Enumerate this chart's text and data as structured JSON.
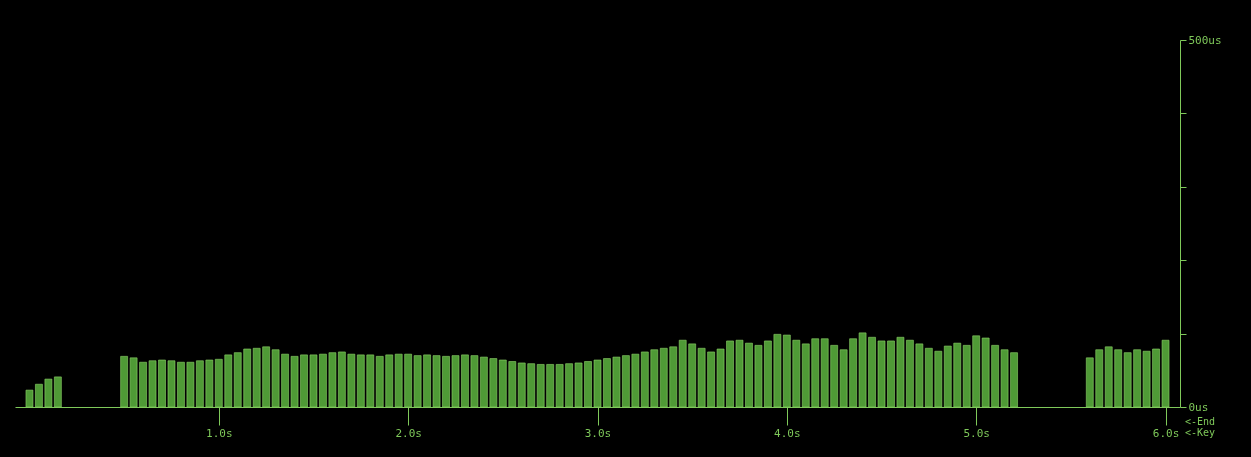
{
  "chart_data": {
    "type": "bar",
    "x": [
      0.0,
      0.05,
      0.1,
      0.15,
      0.2,
      0.25,
      0.3,
      0.35,
      0.4,
      0.45,
      0.5,
      0.55,
      0.6,
      0.65,
      0.7,
      0.75,
      0.8,
      0.85,
      0.9,
      0.95,
      1.0,
      1.05,
      1.1,
      1.15,
      1.2,
      1.25,
      1.3,
      1.35,
      1.4,
      1.45,
      1.5,
      1.55,
      1.6,
      1.65,
      1.7,
      1.75,
      1.8,
      1.85,
      1.9,
      1.95,
      2.0,
      2.05,
      2.1,
      2.15,
      2.2,
      2.25,
      2.3,
      2.35,
      2.4,
      2.45,
      2.5,
      2.55,
      2.6,
      2.65,
      2.7,
      2.75,
      2.8,
      2.85,
      2.9,
      2.95,
      3.0,
      3.05,
      3.1,
      3.15,
      3.2,
      3.25,
      3.3,
      3.35,
      3.4,
      3.45,
      3.5,
      3.55,
      3.6,
      3.65,
      3.7,
      3.75,
      3.8,
      3.85,
      3.9,
      3.95,
      4.0,
      4.05,
      4.1,
      4.15,
      4.2,
      4.25,
      4.3,
      4.35,
      4.4,
      4.45,
      4.5,
      4.55,
      4.6,
      4.65,
      4.7,
      4.75,
      4.8,
      4.85,
      4.9,
      4.95,
      5.0,
      5.05,
      5.1,
      5.15,
      5.2,
      5.25,
      5.3,
      5.35,
      5.4,
      5.45,
      5.5,
      5.55,
      5.6,
      5.65,
      5.7,
      5.75,
      5.8,
      5.85,
      5.9,
      5.95,
      6.0
    ],
    "values": [
      23,
      31,
      38,
      41,
      null,
      null,
      null,
      null,
      null,
      null,
      69,
      67,
      61,
      63,
      64,
      63,
      61,
      61,
      63,
      64,
      65,
      71,
      74,
      79,
      80,
      82,
      78,
      72,
      69,
      71,
      71,
      72,
      74,
      75,
      72,
      71,
      71,
      69,
      71,
      72,
      72,
      70,
      71,
      70,
      69,
      70,
      71,
      70,
      68,
      66,
      64,
      62,
      60,
      59,
      58,
      58,
      58,
      59,
      60,
      62,
      64,
      66,
      68,
      70,
      72,
      75,
      78,
      80,
      82,
      91,
      86,
      80,
      75,
      79,
      90,
      91,
      87,
      84,
      90,
      99,
      98,
      91,
      86,
      93,
      93,
      84,
      78,
      93,
      101,
      95,
      90,
      90,
      95,
      91,
      86,
      80,
      76,
      83,
      87,
      84,
      97,
      94,
      84,
      78,
      74,
      null,
      null,
      null,
      null,
      null,
      null,
      null,
      67,
      78,
      82,
      78,
      74,
      78,
      76,
      79,
      91
    ],
    "color": "#4f9a36",
    "xlim": [
      -0.05,
      6.05
    ],
    "xticks": [
      {
        "value": 1,
        "label": "1.0s"
      },
      {
        "value": 2,
        "label": "2.0s"
      },
      {
        "value": 3,
        "label": "3.0s"
      },
      {
        "value": 4,
        "label": "4.0s"
      },
      {
        "value": 5,
        "label": "5.0s"
      },
      {
        "value": 6,
        "label": "6.0s"
      }
    ],
    "ylim": [
      0,
      500
    ],
    "yticks": [
      {
        "value": 0,
        "label": "0us"
      },
      {
        "value": 100,
        "label": null
      },
      {
        "value": 200,
        "label": null
      },
      {
        "value": 300,
        "label": null
      },
      {
        "value": 400,
        "label": null
      },
      {
        "value": 500,
        "label": "500us"
      }
    ],
    "annotations": [
      "<-End",
      "<-Key"
    ],
    "grid": false
  }
}
